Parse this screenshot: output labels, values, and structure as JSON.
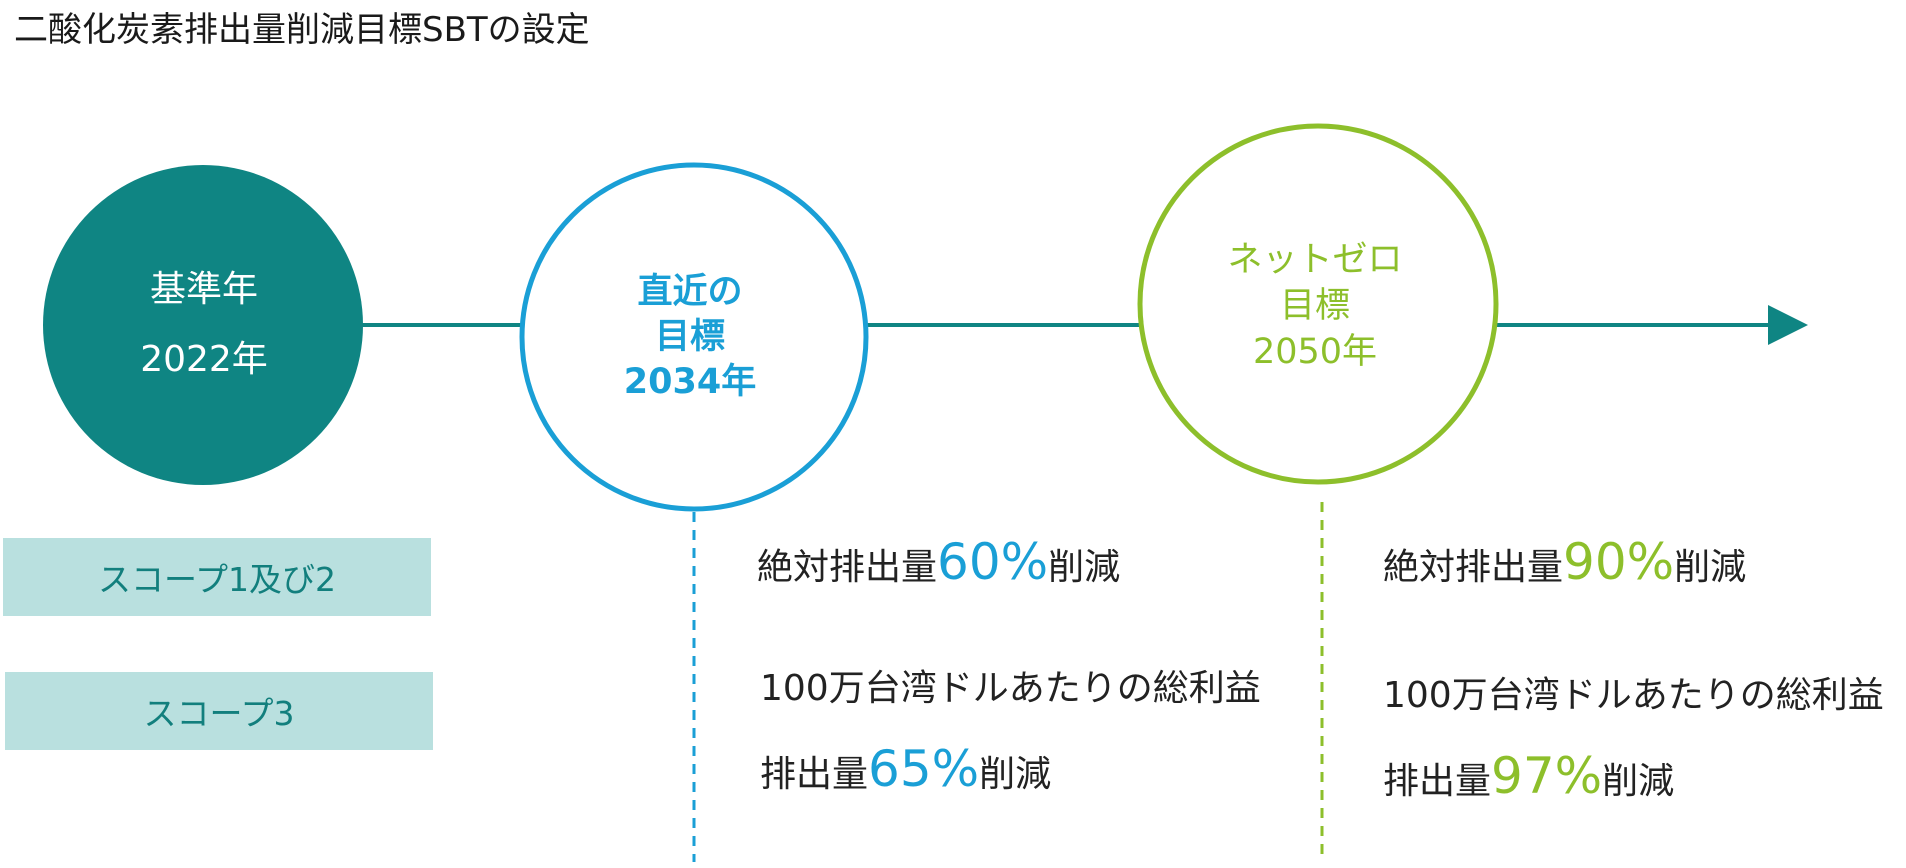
{
  "title": "二酸化炭素排出量削減目標SBTの設定",
  "milestones": {
    "base": {
      "line1": "基準年",
      "line2": "2022年"
    },
    "near_term": {
      "line1": "直近の",
      "line2": "目標",
      "line3": "2034年"
    },
    "net_zero": {
      "line1": "ネットゼロ",
      "line2": "目標",
      "line3": "2050年"
    }
  },
  "scopes": {
    "scope12": "スコープ1及び2",
    "scope3": "スコープ3"
  },
  "near_term_targets": {
    "absolute": {
      "prefix": "絶対排出量",
      "percent": "60%",
      "suffix": "削減"
    },
    "intensity": {
      "line1": "100万台湾ドルあたりの総利益",
      "prefix": "排出量",
      "percent": "65%",
      "suffix": "削減"
    }
  },
  "net_zero_targets": {
    "absolute": {
      "prefix": "絶対排出量",
      "percent": "90%",
      "suffix": "削減"
    },
    "intensity": {
      "line1": "100万台湾ドルあたりの総利益",
      "prefix": "排出量",
      "percent": "97%",
      "suffix": "削減"
    }
  },
  "colors": {
    "base": "#0f8583",
    "near_term": "#1a9fd6",
    "net_zero": "#8dbf2b",
    "scope_fill": "#b9e0df",
    "scope_text": "#127f7d"
  }
}
